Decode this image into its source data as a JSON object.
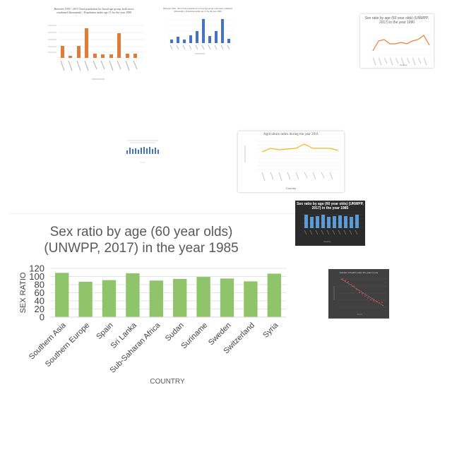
{
  "colors": {
    "orange": "#e07b39",
    "blue": "#4472c4",
    "line_orange": "#ed7d31",
    "line_yellow": "#f4b71c",
    "green": "#8fc46a",
    "dark_bg": "#262626",
    "dark_bg2": "#404040",
    "red": "#e03030"
  },
  "thumbs": {
    "t1": {
      "title": "Between 1950 - 2015 Total population for broad age group, both sexes combined (thousands) - Population under age 15 for the year 1990"
    },
    "t2": {
      "title": "Between 1950 - 2015 Total population for broad age group, both sexes combined (thousands) - Population under age 15 for the year 1990"
    },
    "t3": {
      "title": "Sex ratio by age (60 year olds) (UNWPP, 2017) in the year 1990",
      "xlabel": "Country"
    },
    "t5": {
      "title": "Agriculture index during the year 2011",
      "xlabel": "Country"
    },
    "t6": {
      "title": "Sex ratio by age (60 year olds) (UNWPP, 2017) in the year 1985",
      "xlabel": "Country"
    },
    "t7": {
      "title": "Number of deaths under the years to one"
    }
  },
  "chart_data": {
    "type": "bar",
    "title_line1": "Sex ratio by age (60 year olds)",
    "title_line2": "(UNWPP, 2017) in the year 1985",
    "xlabel": "COUNTRY",
    "ylabel": "SEX RATIO",
    "ylim": [
      0,
      120
    ],
    "yticks": [
      0,
      20,
      40,
      60,
      80,
      100,
      120
    ],
    "grid": true,
    "categories": [
      "Southern Asia",
      "Southern Europe",
      "Spain",
      "Sri Lanka",
      "Sub-Saharan Africa",
      "Sudan",
      "Suriname",
      "Sweden",
      "Switzerland",
      "Syria"
    ],
    "values": [
      109,
      87,
      91,
      108,
      90,
      94,
      99,
      95,
      88,
      107
    ]
  }
}
